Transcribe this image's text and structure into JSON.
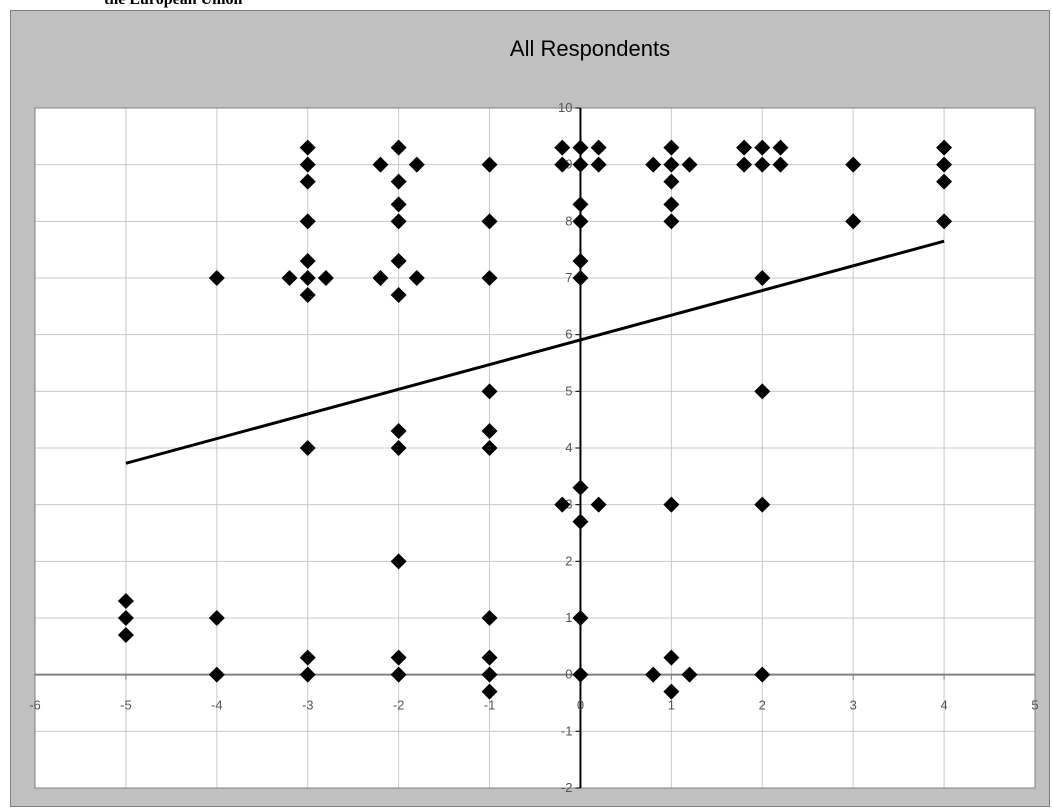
{
  "page": {
    "heading": "the European Union"
  },
  "chart_data": {
    "type": "scatter",
    "title": "All Respondents",
    "xlabel": "",
    "ylabel": "",
    "xlim": [
      -6,
      5
    ],
    "ylim": [
      -2,
      10
    ],
    "x_ticks": [
      -6,
      -5,
      -4,
      -3,
      -2,
      -1,
      0,
      1,
      2,
      3,
      4,
      5
    ],
    "y_ticks": [
      -2,
      -1,
      0,
      1,
      2,
      3,
      4,
      5,
      6,
      7,
      8,
      9,
      10
    ],
    "grid": true,
    "marker": "diamond",
    "marker_color": "#000000",
    "plot_background": "#ffffff",
    "frame_background": "#c0c0c0",
    "points": [
      [
        -5,
        1.3
      ],
      [
        -5,
        1
      ],
      [
        -5,
        0.7
      ],
      [
        -4,
        7
      ],
      [
        -4,
        1
      ],
      [
        -4,
        0
      ],
      [
        -3,
        9.3
      ],
      [
        -3,
        9
      ],
      [
        -3,
        8.7
      ],
      [
        -3,
        8
      ],
      [
        -3,
        7.3
      ],
      [
        -3.2,
        7
      ],
      [
        -3,
        7
      ],
      [
        -2.8,
        7
      ],
      [
        -3,
        6.7
      ],
      [
        -3,
        4
      ],
      [
        -3,
        0.3
      ],
      [
        -3,
        0
      ],
      [
        -2,
        9.3
      ],
      [
        -2.2,
        9
      ],
      [
        -1.8,
        9
      ],
      [
        -2,
        8.7
      ],
      [
        -2,
        8.3
      ],
      [
        -2,
        8
      ],
      [
        -2,
        7.3
      ],
      [
        -2.2,
        7
      ],
      [
        -1.8,
        7
      ],
      [
        -2,
        6.7
      ],
      [
        -2,
        4.3
      ],
      [
        -2,
        4
      ],
      [
        -2,
        2
      ],
      [
        -2,
        0.3
      ],
      [
        -2,
        0
      ],
      [
        -1,
        9
      ],
      [
        -1,
        8
      ],
      [
        -1,
        7
      ],
      [
        -1,
        5
      ],
      [
        -1,
        4.3
      ],
      [
        -1,
        4
      ],
      [
        -1,
        1
      ],
      [
        -1,
        0.3
      ],
      [
        -1,
        0
      ],
      [
        -1,
        -0.3
      ],
      [
        -0.2,
        9.3
      ],
      [
        0,
        9.3
      ],
      [
        0.2,
        9.3
      ],
      [
        -0.2,
        9
      ],
      [
        0,
        9
      ],
      [
        0.2,
        9
      ],
      [
        0,
        8.3
      ],
      [
        0,
        8
      ],
      [
        0,
        7.3
      ],
      [
        0,
        7
      ],
      [
        0,
        3.3
      ],
      [
        -0.2,
        3
      ],
      [
        0.2,
        3
      ],
      [
        0,
        2.7
      ],
      [
        0,
        1
      ],
      [
        0,
        0
      ],
      [
        1,
        9.3
      ],
      [
        0.8,
        9
      ],
      [
        1,
        9
      ],
      [
        1.2,
        9
      ],
      [
        1,
        8.7
      ],
      [
        1,
        8.3
      ],
      [
        1,
        8
      ],
      [
        1,
        3
      ],
      [
        1,
        0.3
      ],
      [
        0.8,
        0
      ],
      [
        1.2,
        0
      ],
      [
        1,
        -0.3
      ],
      [
        1.8,
        9.3
      ],
      [
        2,
        9.3
      ],
      [
        2.2,
        9.3
      ],
      [
        1.8,
        9
      ],
      [
        2,
        9
      ],
      [
        2.2,
        9
      ],
      [
        2,
        7
      ],
      [
        2,
        5
      ],
      [
        2,
        3
      ],
      [
        2,
        0
      ],
      [
        3,
        9
      ],
      [
        3,
        8
      ],
      [
        4,
        9.3
      ],
      [
        4,
        9
      ],
      [
        4,
        8.7
      ],
      [
        4,
        8
      ]
    ],
    "trendline": {
      "x": [
        -5,
        4
      ],
      "y": [
        3.73,
        7.65
      ]
    }
  }
}
